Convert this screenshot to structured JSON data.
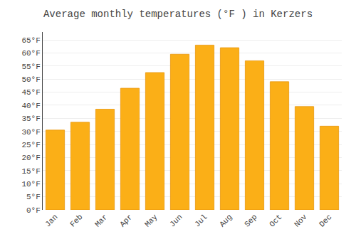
{
  "chart_data": {
    "type": "bar",
    "title": "Average monthly temperatures (°F ) in Kerzers",
    "categories": [
      "Jan",
      "Feb",
      "Mar",
      "Apr",
      "May",
      "Jun",
      "Jul",
      "Aug",
      "Sep",
      "Oct",
      "Nov",
      "Dec"
    ],
    "values": [
      30.5,
      33.5,
      38.5,
      46.5,
      52.5,
      59.5,
      63.0,
      62.0,
      57.0,
      49.0,
      39.5,
      32.0
    ],
    "color": "#FBAF17",
    "ylim": [
      0,
      68
    ],
    "yticks": [
      {
        "value": 0,
        "label": "0°F"
      },
      {
        "value": 5,
        "label": "5°F"
      },
      {
        "value": 10,
        "label": "10°F"
      },
      {
        "value": 15,
        "label": "15°F"
      },
      {
        "value": 20,
        "label": "20°F"
      },
      {
        "value": 25,
        "label": "25°F"
      },
      {
        "value": 30,
        "label": "30°F"
      },
      {
        "value": 35,
        "label": "35°F"
      },
      {
        "value": 40,
        "label": "40°F"
      },
      {
        "value": 45,
        "label": "45°F"
      },
      {
        "value": 50,
        "label": "50°F"
      },
      {
        "value": 55,
        "label": "55°F"
      },
      {
        "value": 60,
        "label": "60°F"
      },
      {
        "value": 65,
        "label": "65°F"
      }
    ],
    "grid": true
  }
}
